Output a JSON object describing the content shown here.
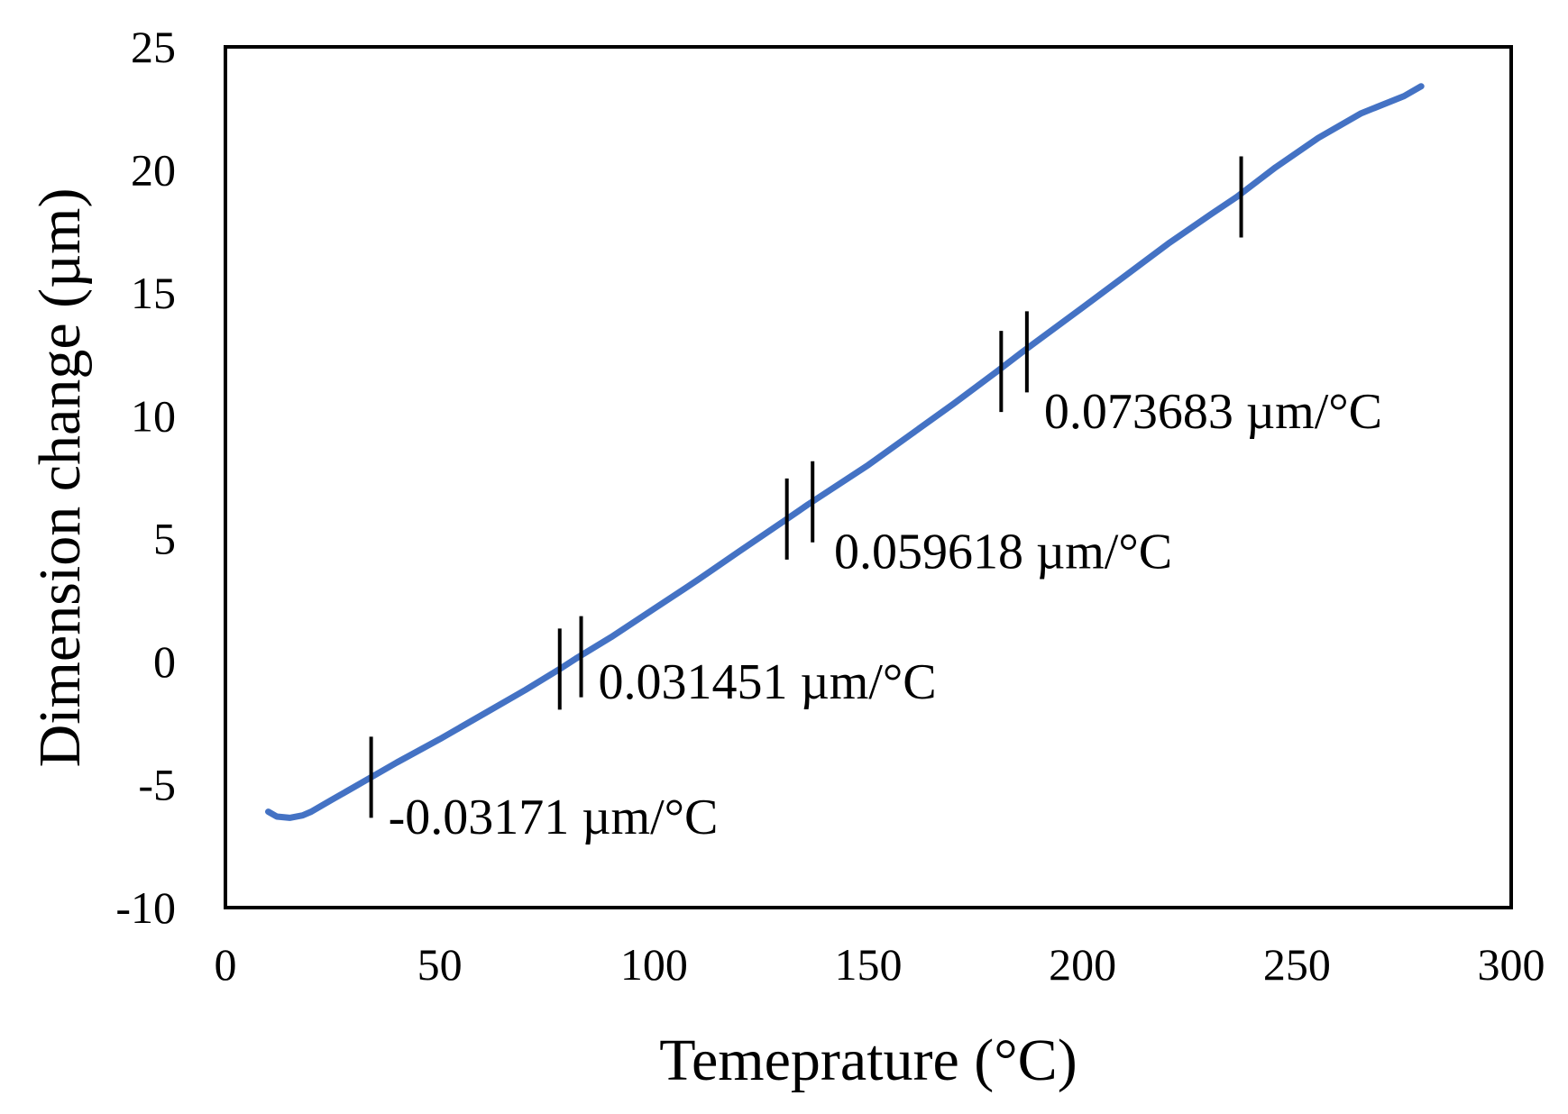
{
  "chart_data": {
    "type": "line",
    "title": "",
    "xlabel": "Temeprature (°C)",
    "ylabel": "Dimension change (µm)",
    "xlim": [
      0,
      300
    ],
    "ylim": [
      -10,
      25
    ],
    "x_ticks": [
      0,
      50,
      100,
      150,
      200,
      250,
      300
    ],
    "y_ticks": [
      -10,
      -5,
      0,
      5,
      10,
      15,
      20,
      25
    ],
    "grid": false,
    "series": [
      {
        "name": "Dimension change",
        "color": "#4472C4",
        "x": [
          10,
          12,
          15,
          18,
          20,
          25,
          30,
          34,
          40,
          50,
          60,
          70,
          78,
          82,
          90,
          100,
          110,
          120,
          131,
          136,
          150,
          160,
          170,
          180,
          186,
          200,
          210,
          220,
          230,
          236,
          245,
          255,
          265,
          275,
          279
        ],
        "y": [
          -6.1,
          -6.3,
          -6.35,
          -6.25,
          -6.1,
          -5.6,
          -5.1,
          -4.7,
          -4.1,
          -3.15,
          -2.15,
          -1.15,
          -0.3,
          0.15,
          1.0,
          2.15,
          3.3,
          4.5,
          5.8,
          6.4,
          8.0,
          9.25,
          10.5,
          11.8,
          12.6,
          14.4,
          15.7,
          17.0,
          18.2,
          18.9,
          20.1,
          21.3,
          22.3,
          23.0,
          23.4
        ]
      }
    ],
    "markers": [
      {
        "x": 34,
        "y": -4.7
      },
      {
        "x": 78,
        "y": -0.3
      },
      {
        "x": 83,
        "y": 0.2
      },
      {
        "x": 131,
        "y": 5.8
      },
      {
        "x": 137,
        "y": 6.5
      },
      {
        "x": 181,
        "y": 11.8
      },
      {
        "x": 187,
        "y": 12.6
      },
      {
        "x": 237,
        "y": 18.9
      }
    ],
    "annotations": [
      {
        "text": "-0.03171 µm/°C",
        "x": 38,
        "y": -7.0
      },
      {
        "text": "0.031451 µm/°C",
        "x": 87,
        "y": -1.5
      },
      {
        "text": "0.059618 µm/°C",
        "x": 142,
        "y": 3.8
      },
      {
        "text": "0.073683 µm/°C",
        "x": 191,
        "y": 9.5
      }
    ]
  }
}
